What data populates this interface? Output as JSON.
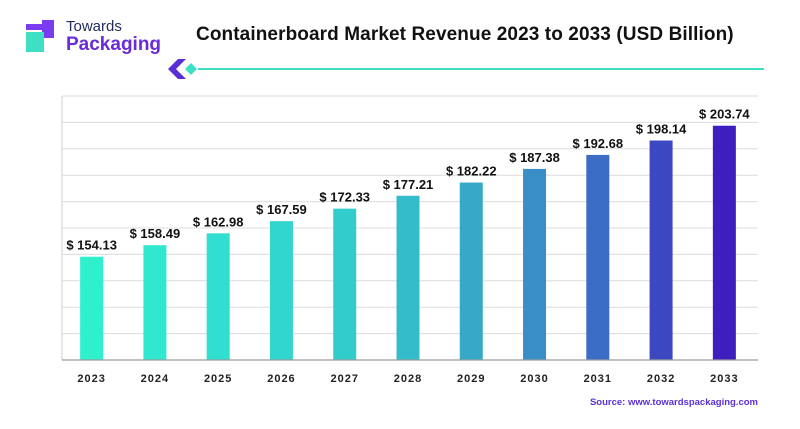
{
  "brand": {
    "name_top": "Towards",
    "name_bottom": "Packaging",
    "mark_colors": [
      "#7a3cf0",
      "#3de0c3"
    ]
  },
  "title": "Containerboard Market Revenue 2023 to 2033 (USD Billion)",
  "source": "Source: www.towardspackaging.com",
  "chart_data": {
    "type": "bar",
    "title": "Containerboard Market Revenue 2023 to 2033 (USD Billion)",
    "xlabel": "",
    "ylabel": "",
    "categories": [
      "2023",
      "2024",
      "2025",
      "2026",
      "2027",
      "2028",
      "2029",
      "2030",
      "2031",
      "2032",
      "2033"
    ],
    "values": [
      154.13,
      158.49,
      162.98,
      167.59,
      172.33,
      177.21,
      182.22,
      187.38,
      192.68,
      198.14,
      203.74
    ],
    "data_labels": [
      "$ 154.13",
      "$ 158.49",
      "$ 162.98",
      "$ 167.59",
      "$ 172.33",
      "$ 177.21",
      "$ 182.22",
      "$ 187.38",
      "$ 192.68",
      "$ 198.14",
      "$ 203.74"
    ],
    "ylim": [
      115,
      215
    ],
    "grid": true,
    "colors": [
      "#2ff0cd",
      "#2fe8cf",
      "#30dfcf",
      "#31d6cf",
      "#33cccd",
      "#35bccb",
      "#37a8c8",
      "#3a8ec6",
      "#3b6cc6",
      "#3c48c2",
      "#3d1fc0"
    ]
  }
}
